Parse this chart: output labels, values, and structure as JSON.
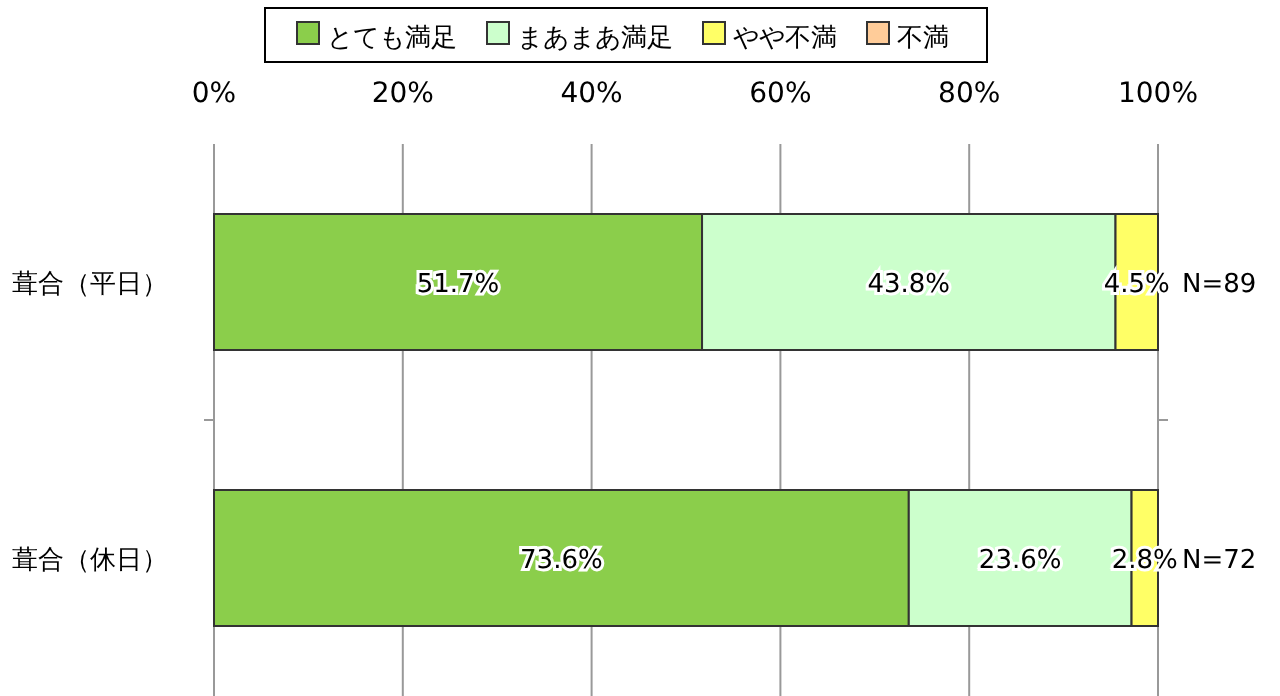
{
  "chart_data": {
    "type": "bar",
    "orientation": "horizontal",
    "stacked": true,
    "categories": [
      "葺合（平日）",
      "葺合（休日）"
    ],
    "series": [
      {
        "name": "とても満足",
        "color": "#8bce4b",
        "values": [
          51.7,
          73.6
        ],
        "value_labels": [
          "51.7%",
          "73.6%"
        ]
      },
      {
        "name": "まあまあ満足",
        "color": "#ccffcc",
        "values": [
          43.8,
          23.6
        ],
        "value_labels": [
          "43.8%",
          "23.6%"
        ]
      },
      {
        "name": "やや不満",
        "color": "#ffff66",
        "values": [
          4.5,
          2.8
        ],
        "value_labels": [
          "4.5%",
          "2.8%"
        ]
      },
      {
        "name": "不満",
        "color": "#ffcc99",
        "values": [
          0,
          0
        ],
        "value_labels": [
          null,
          null
        ]
      }
    ],
    "xlim": [
      0,
      100
    ],
    "xticks": [
      {
        "value": 0,
        "label": "0%"
      },
      {
        "value": 20,
        "label": "20%"
      },
      {
        "value": 40,
        "label": "40%"
      },
      {
        "value": 60,
        "label": "60%"
      },
      {
        "value": 80,
        "label": "80%"
      },
      {
        "value": 100,
        "label": "100%"
      }
    ],
    "grid": "x",
    "legend": "top",
    "annotations": [
      {
        "text": "N=89",
        "x": 100,
        "y": "葺合（平日）"
      },
      {
        "text": "N=72",
        "x": 100,
        "y": "葺合（休日）"
      }
    ]
  }
}
